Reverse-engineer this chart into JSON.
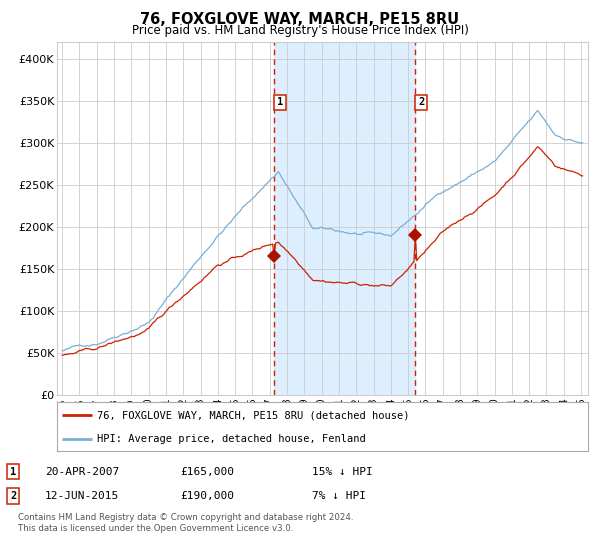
{
  "title": "76, FOXGLOVE WAY, MARCH, PE15 8RU",
  "subtitle": "Price paid vs. HM Land Registry's House Price Index (HPI)",
  "legend_line1": "76, FOXGLOVE WAY, MARCH, PE15 8RU (detached house)",
  "legend_line2": "HPI: Average price, detached house, Fenland",
  "annotation1_label": "1",
  "annotation1_date": "20-APR-2007",
  "annotation1_price": "£165,000",
  "annotation1_hpi": "15% ↓ HPI",
  "annotation2_label": "2",
  "annotation2_date": "12-JUN-2015",
  "annotation2_price": "£190,000",
  "annotation2_hpi": "7% ↓ HPI",
  "footer_line1": "Contains HM Land Registry data © Crown copyright and database right 2024.",
  "footer_line2": "This data is licensed under the Open Government Licence v3.0.",
  "hpi_color": "#7bafd4",
  "price_color": "#cc2200",
  "point_color": "#aa1100",
  "vline_color": "#cc2200",
  "shade_color": "#ddeeff",
  "background_color": "#ffffff",
  "grid_color": "#cccccc",
  "sale1_t": 2007.25,
  "sale2_t": 2015.417,
  "sale1_price": 165000,
  "sale2_price": 190000,
  "ylim_max": 420000,
  "ylim_min": 0,
  "xlim_min": 1994.7,
  "xlim_max": 2025.4
}
